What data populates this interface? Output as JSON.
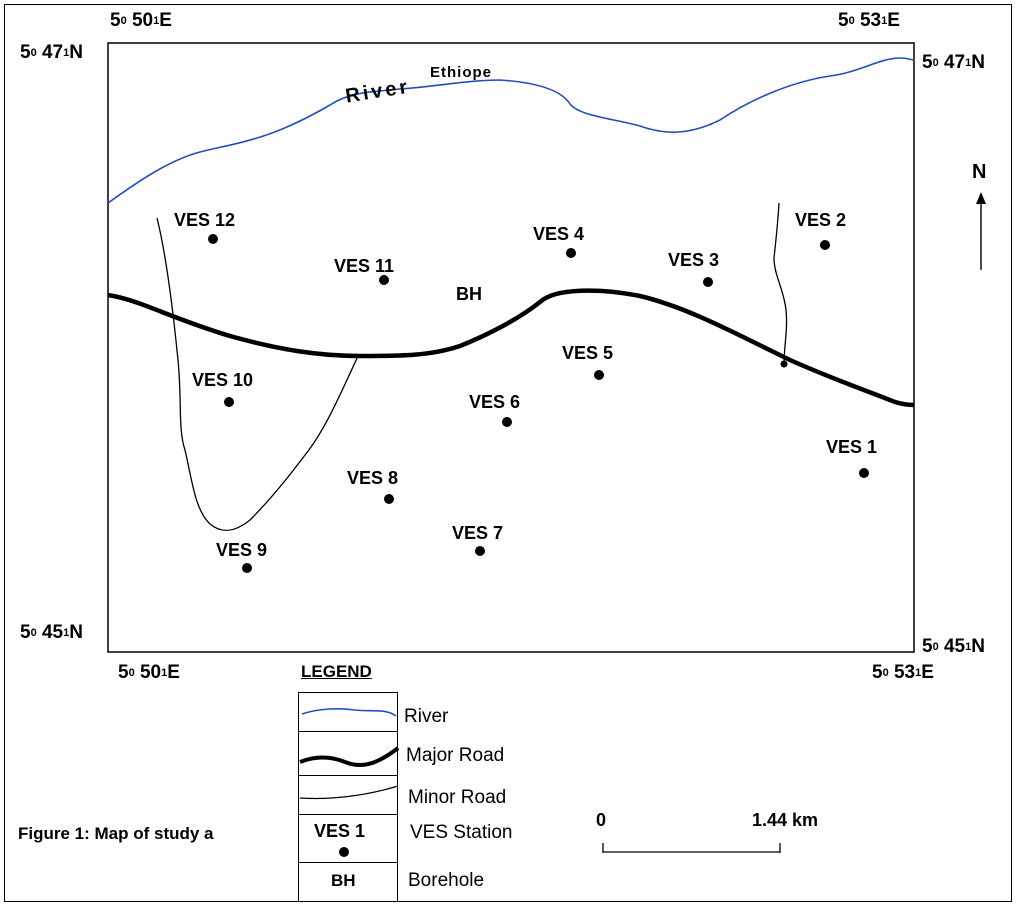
{
  "coordinates": {
    "top_left_lon": "5",
    "top_left_lon_sup": "0",
    "top_left_lon_min": "50",
    "top_left_lon_min_sup": "1",
    "top_left_lon_dir": "E",
    "top_right_lon": "5",
    "top_right_lon_min": "53",
    "lat_top": "47",
    "lat_bottom": "45",
    "lat_dir": "N",
    "deg_sup": "0",
    "min_sup": "1"
  },
  "labels": {
    "lon_left_top": "5",
    "lon_left_top_min": "50",
    "lon_right_top_min": "53",
    "lat_left_top_min": "47",
    "lat_left_bottom_min": "45",
    "east": "E",
    "north": "N"
  },
  "river": {
    "name_part1": "River",
    "name_part2": "Ethiope",
    "color": "#1f4fbf"
  },
  "north_arrow": "N",
  "features": {
    "borehole": "BH"
  },
  "stations": [
    {
      "id": "ves-1",
      "label": "VES  1"
    },
    {
      "id": "ves-2",
      "label": "VES  2"
    },
    {
      "id": "ves-3",
      "label": "VES  3"
    },
    {
      "id": "ves-4",
      "label": "VES  4"
    },
    {
      "id": "ves-5",
      "label": "VES  5"
    },
    {
      "id": "ves-6",
      "label": "VES  6"
    },
    {
      "id": "ves-7",
      "label": "VES  7"
    },
    {
      "id": "ves-8",
      "label": "VES  8"
    },
    {
      "id": "ves-9",
      "label": "VES  9"
    },
    {
      "id": "ves-10",
      "label": "VES  10"
    },
    {
      "id": "ves-11",
      "label": "VES  11"
    },
    {
      "id": "ves-12",
      "label": "VES  12"
    }
  ],
  "legend": {
    "title": "LEGEND",
    "river": "River",
    "major_road": "Major Road",
    "minor_road": "Minor Road",
    "ves_station": "VES Station",
    "ves_symbol": "VES 1",
    "borehole": "Borehole",
    "bh_symbol": "BH"
  },
  "scale": {
    "start": "0",
    "end": "1.44 km"
  },
  "caption": "Figure 1: Map of study a"
}
